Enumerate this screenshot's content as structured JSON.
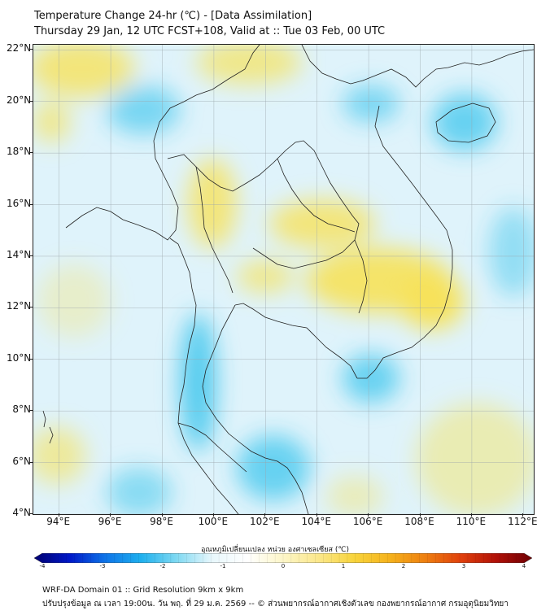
{
  "header": {
    "title": "Temperature Change 24-hr (℃) - [Data Assimilation]",
    "subtitle": "Thursday 29 Jan, 12 UTC FCST+108, Valid at :: Tue 03 Feb, 00 UTC"
  },
  "map": {
    "lat_labels": [
      "22°N",
      "20°N",
      "18°N",
      "16°N",
      "14°N",
      "12°N",
      "10°N",
      "8°N",
      "6°N",
      "4°N"
    ],
    "lon_labels": [
      "94°E",
      "96°E",
      "98°E",
      "100°E",
      "102°E",
      "104°E",
      "106°E",
      "108°E",
      "110°E",
      "112°E"
    ],
    "lat_range": [
      4,
      22.2
    ],
    "lon_range": [
      93,
      112.4
    ],
    "grid": true,
    "background_color": "#dff3fb",
    "warm_color": "#f7e25a",
    "cool_color": "#32c3ec",
    "coastline_color": "#222222"
  },
  "colorbar": {
    "label": "อุณหภูมิเปลี่ยนแปลง หน่วย องศาเซลเซียส (℃)",
    "ticks": [
      "-4",
      "-3",
      "-2",
      "-1",
      "0",
      "1",
      "2",
      "3",
      "4"
    ],
    "range": [
      -4,
      4
    ],
    "colors": [
      "#000070",
      "#0018c8",
      "#0e74e8",
      "#1fb0ee",
      "#7fd9f2",
      "#e8f7fc",
      "#ffffff",
      "#fdf6c8",
      "#fbe78a",
      "#f8d43c",
      "#f5b21c",
      "#ee7f10",
      "#e0400c",
      "#b01008",
      "#6e0004"
    ]
  },
  "footer": {
    "line1": "WRF-DA Domain 01 :: Grid Resolution 9km x 9km",
    "line2": "ปรับปรุงข้อมูล ณ เวลา 19:00น. วัน พฤ. ที่ 29 ม.ค. 2569 -- © ส่วนพยากรณ์อากาศเชิงตัวเลข กองพยากรณ์อากาศ กรมอุตุนิยมวิทยา"
  }
}
